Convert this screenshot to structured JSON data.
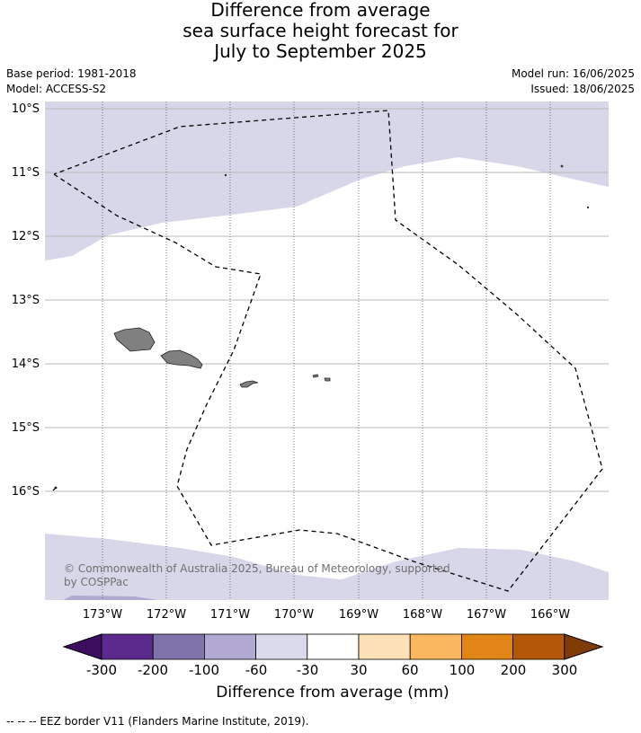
{
  "title": {
    "line1": "Difference from average",
    "line2": "sea surface height forecast for",
    "line3": "July to September 2025"
  },
  "meta": {
    "base_period": "Base period: 1981-2018",
    "model": "Model: ACCESS-S2",
    "model_run": "Model run: 16/06/2025",
    "issued": "Issued: 18/06/2025"
  },
  "map": {
    "lat_labels": [
      "10°S",
      "11°S",
      "12°S",
      "13°S",
      "14°S",
      "15°S",
      "16°S"
    ],
    "lon_labels": [
      "173°W",
      "172°W",
      "171°W",
      "170°W",
      "169°W",
      "168°W",
      "167°W",
      "166°W"
    ],
    "colors": {
      "land": "#808080",
      "anomaly_band_-60_-30": "#d7d7e9",
      "ocean_-30_30": "#ffffff"
    },
    "copyright": "© Commonwealth of Australia 2025, Bureau of Meteorology, supported by COSPPac"
  },
  "colorbar": {
    "ticks": [
      "-300",
      "-200",
      "-100",
      "-60",
      "-30",
      "30",
      "60",
      "100",
      "200",
      "300"
    ],
    "colors": [
      "#3c0d5e",
      "#5c2a8c",
      "#8073ac",
      "#b1a9d2",
      "#d8d9eb",
      "#ffffff",
      "#fee0b6",
      "#fbb660",
      "#e28518",
      "#b45807",
      "#7f3b08"
    ],
    "label": "Difference from average (mm)"
  },
  "footnote": "--  --  -- EEZ border V11 (Flanders Marine Institute, 2019)."
}
